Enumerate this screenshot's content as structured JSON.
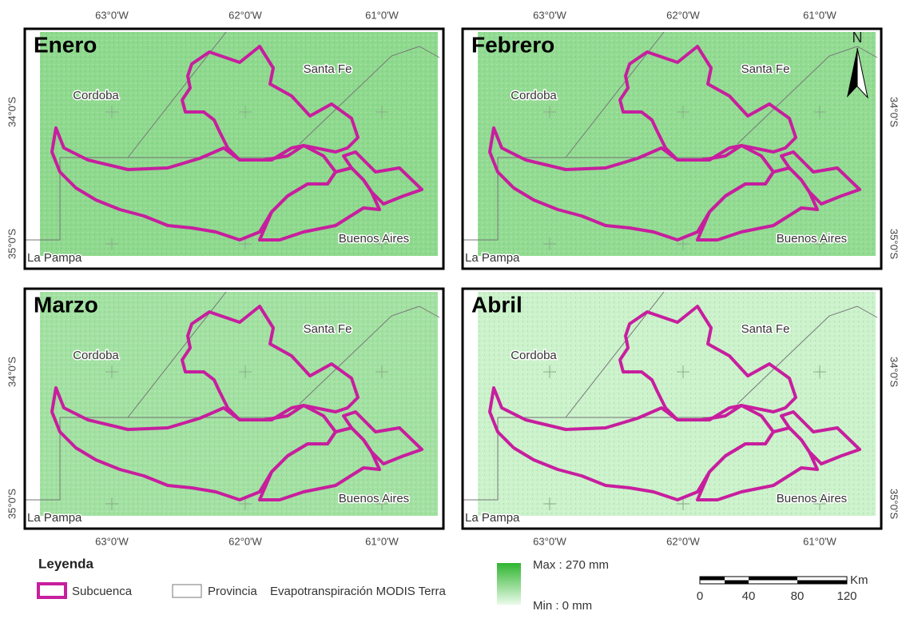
{
  "panels": [
    {
      "title": "Enero",
      "places": [
        "Santa Fe",
        "Cordoba",
        "Buenos Aires",
        "La Pampa"
      ],
      "lon_labels": [
        "63°0'W",
        "62°0'W",
        "61°0'W"
      ],
      "lat_labels": [
        "34°0'S",
        "35°0'S"
      ]
    },
    {
      "title": "Febrero",
      "places": [
        "Santa Fe",
        "Cordoba",
        "Buenos Aires",
        "La Pampa"
      ],
      "lon_labels": [
        "63°0'W",
        "62°0'W",
        "61°0'W"
      ],
      "lat_labels": [
        "34°0'S",
        "35°0'S"
      ],
      "north": "N"
    },
    {
      "title": "Marzo",
      "places": [
        "Santa Fe",
        "Cordoba",
        "Buenos Aires",
        "La Pampa"
      ],
      "lon_labels": [
        "63°0'W",
        "62°0'W",
        "61°0'W"
      ],
      "lat_labels": [
        "34°0'S",
        "35°0'S"
      ]
    },
    {
      "title": "Abril",
      "places": [
        "Santa Fe",
        "Cordoba",
        "Buenos Aires",
        "La Pampa"
      ],
      "lon_labels": [
        "63°0'W",
        "62°0'W",
        "61°0'W"
      ],
      "lat_labels": [
        "34°0'S",
        "35°0'S"
      ]
    }
  ],
  "legend": {
    "title": "Leyenda",
    "subcuenca": "Subcuenca",
    "provincia": "Provincia",
    "raster": "Evapotranspiración MODIS Terra",
    "max": "Max : 270 mm",
    "min": "Min : 0 mm"
  },
  "scale_bar": {
    "unit": "Km",
    "ticks": [
      0,
      40,
      80,
      120
    ]
  }
}
